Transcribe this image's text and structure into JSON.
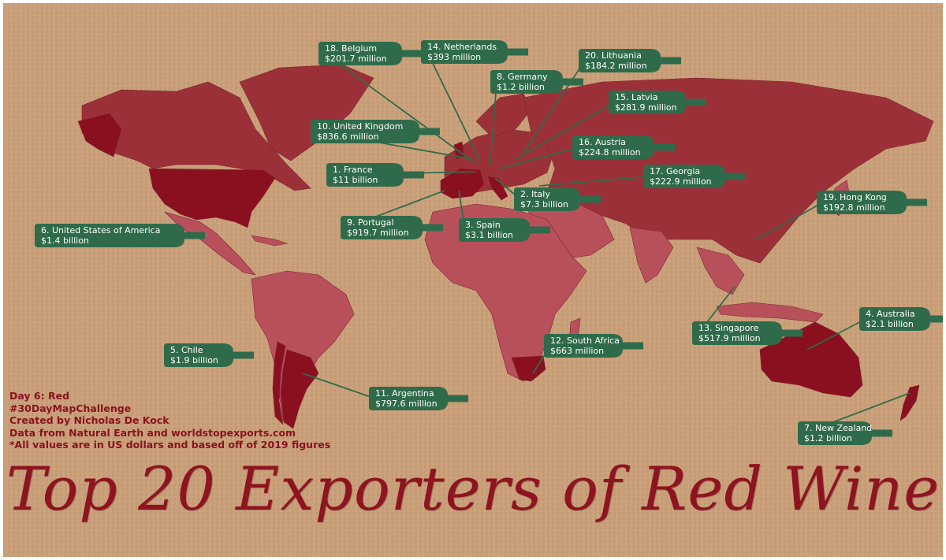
{
  "title": "Top 20 Exporters of Red Wine",
  "credits": [
    "Day 6: Red",
    "#30DayMapChallenge",
    "Created by Nicholas De Kock",
    "Data from Natural Earth and worldstopexports.com",
    "*All values are in US dollars and based off of 2019 figures"
  ],
  "colors": {
    "background": "#c9a07a",
    "land": "#9c3038",
    "land_light": "#b8505c",
    "highlight": "#8a1020",
    "bottle": "#2f6b4a",
    "text": "#8a1220"
  },
  "exporters": [
    {
      "rank": 1,
      "name": "1. France",
      "value": "$11 billion"
    },
    {
      "rank": 2,
      "name": "2. Italy",
      "value": "$7.3 billion"
    },
    {
      "rank": 3,
      "name": "3. Spain",
      "value": "$3.1 billion"
    },
    {
      "rank": 4,
      "name": "4. Australia",
      "value": "$2.1 billion"
    },
    {
      "rank": 5,
      "name": "5. Chile",
      "value": "$1.9 billion"
    },
    {
      "rank": 6,
      "name": "6. United States of America",
      "value": "$1.4 billion"
    },
    {
      "rank": 7,
      "name": "7. New Zealand",
      "value": "$1.2 billion"
    },
    {
      "rank": 8,
      "name": "8. Germany",
      "value": "$1.2 billion"
    },
    {
      "rank": 9,
      "name": "9. Portugal",
      "value": "$919.7 million"
    },
    {
      "rank": 10,
      "name": "10. United Kingdom",
      "value": "$836.6 million"
    },
    {
      "rank": 11,
      "name": "11. Argentina",
      "value": "$797.6 million"
    },
    {
      "rank": 12,
      "name": "12. South Africa",
      "value": "$663 million"
    },
    {
      "rank": 13,
      "name": "13. Singapore",
      "value": "$517.9 million"
    },
    {
      "rank": 14,
      "name": "14. Netherlands",
      "value": "$393 million"
    },
    {
      "rank": 15,
      "name": "15. Latvia",
      "value": "$281.9 million"
    },
    {
      "rank": 16,
      "name": "16. Austria",
      "value": "$224.8 million"
    },
    {
      "rank": 17,
      "name": "17. Georgia",
      "value": "$222.9 million"
    },
    {
      "rank": 18,
      "name": "18. Belgium",
      "value": "$201.7 million"
    },
    {
      "rank": 19,
      "name": "19. Hong Kong",
      "value": "$192.8 million"
    },
    {
      "rank": 20,
      "name": "20. Lithuania",
      "value": "$184.2 million"
    }
  ]
}
